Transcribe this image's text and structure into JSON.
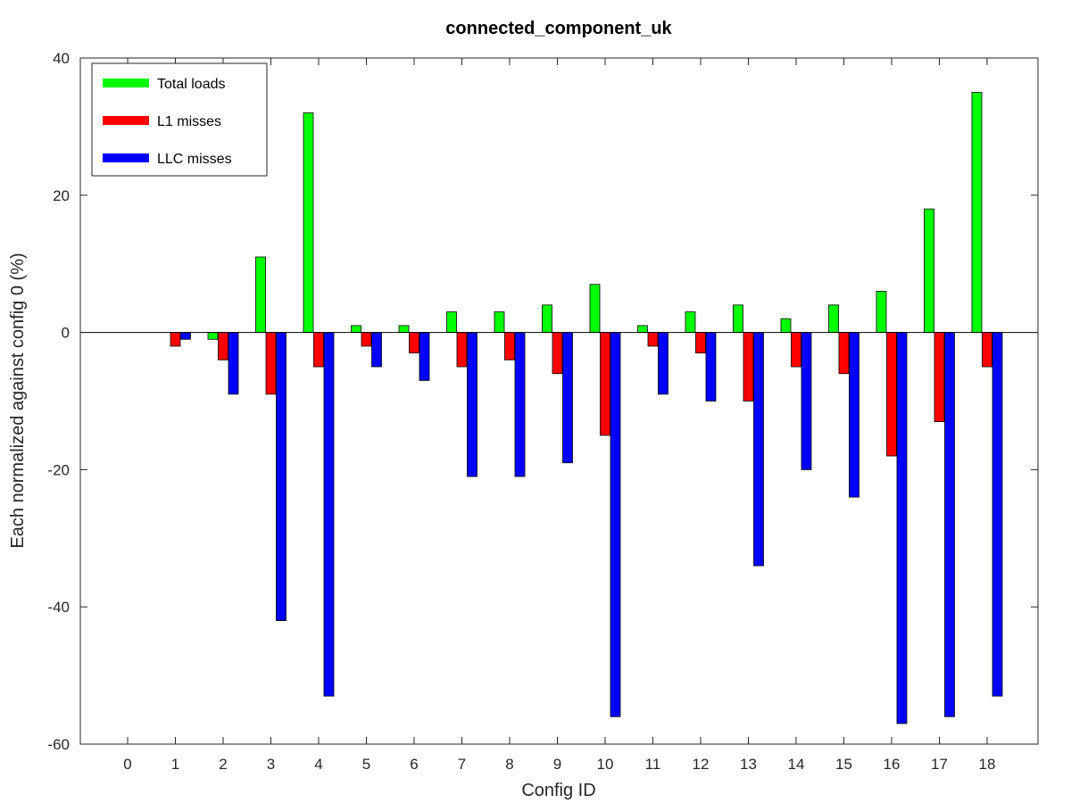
{
  "chart_data": {
    "type": "bar",
    "title": "connected_component_uk",
    "xlabel": "Config ID",
    "ylabel": "Each normalized against config 0 (%)",
    "categories": [
      "0",
      "1",
      "2",
      "3",
      "4",
      "5",
      "6",
      "7",
      "8",
      "9",
      "10",
      "11",
      "12",
      "13",
      "14",
      "15",
      "16",
      "17",
      "18"
    ],
    "ylim": [
      -60,
      40
    ],
    "yticks": [
      -60,
      -40,
      -20,
      0,
      20,
      40
    ],
    "ytick_labels": [
      "-60",
      "-40",
      "-20",
      "0",
      "20",
      "40"
    ],
    "legend_position": "top-left",
    "grid": false,
    "series": [
      {
        "name": "Total loads",
        "color": "#00ff00",
        "values": [
          0,
          0,
          -1,
          11,
          32,
          1,
          1,
          3,
          3,
          4,
          7,
          1,
          3,
          4,
          2,
          4,
          6,
          18,
          35
        ]
      },
      {
        "name": "L1 misses",
        "color": "#ff0000",
        "values": [
          0,
          -2,
          -4,
          -9,
          -5,
          -2,
          -3,
          -5,
          -4,
          -6,
          -15,
          -2,
          -3,
          -10,
          -5,
          -6,
          -18,
          -13,
          -5
        ]
      },
      {
        "name": "LLC misses",
        "color": "#0000ff",
        "values": [
          0,
          -1,
          -9,
          -42,
          -53,
          -5,
          -7,
          -21,
          -21,
          -19,
          -56,
          -9,
          -10,
          -34,
          -20,
          -24,
          -57,
          -56,
          -53
        ]
      }
    ]
  }
}
